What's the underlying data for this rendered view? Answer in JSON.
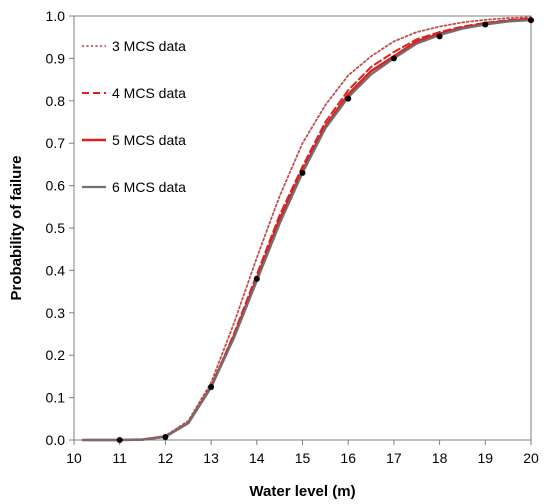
{
  "chart_data": {
    "type": "line",
    "title": "",
    "xlabel": "Water level (m)",
    "ylabel": "Probability of failure",
    "xlim": [
      10,
      20
    ],
    "ylim": [
      0,
      1
    ],
    "x_ticks": [
      "10",
      "11",
      "12",
      "13",
      "14",
      "15",
      "16",
      "17",
      "18",
      "19",
      "20"
    ],
    "y_ticks": [
      "0.0",
      "0.1",
      "0.2",
      "0.3",
      "0.4",
      "0.5",
      "0.6",
      "0.7",
      "0.8",
      "0.9",
      "1.0"
    ],
    "grid": false,
    "legend_position": "top-left",
    "x": [
      10.2,
      11,
      11.5,
      12,
      12.5,
      13,
      13.5,
      14,
      14.5,
      15,
      15.5,
      16,
      16.5,
      17,
      17.5,
      18,
      18.5,
      19,
      19.5,
      20
    ],
    "series": [
      {
        "name": "3 MCS data",
        "style": "dotted",
        "color": "#c0504d",
        "values": [
          0.0,
          0.0,
          0.001,
          0.01,
          0.045,
          0.135,
          0.275,
          0.43,
          0.575,
          0.7,
          0.79,
          0.86,
          0.905,
          0.94,
          0.962,
          0.975,
          0.985,
          0.991,
          0.995,
          0.997
        ]
      },
      {
        "name": "4 MCS data",
        "style": "dashed",
        "color": "#e02020",
        "values": [
          0.0,
          0.0,
          0.001,
          0.008,
          0.04,
          0.125,
          0.25,
          0.39,
          0.53,
          0.645,
          0.75,
          0.825,
          0.88,
          0.915,
          0.945,
          0.962,
          0.975,
          0.984,
          0.99,
          0.994
        ]
      },
      {
        "name": "5 MCS data",
        "style": "solid",
        "color": "#e02020",
        "values": [
          0.0,
          0.0,
          0.001,
          0.008,
          0.04,
          0.125,
          0.245,
          0.38,
          0.52,
          0.635,
          0.74,
          0.815,
          0.87,
          0.905,
          0.94,
          0.958,
          0.972,
          0.982,
          0.988,
          0.992
        ]
      },
      {
        "name": "6 MCS data",
        "style": "solid",
        "color": "#707070",
        "values": [
          0.0,
          0.0,
          0.001,
          0.008,
          0.04,
          0.124,
          0.24,
          0.375,
          0.51,
          0.63,
          0.735,
          0.808,
          0.862,
          0.9,
          0.935,
          0.955,
          0.97,
          0.98,
          0.987,
          0.99
        ]
      }
    ],
    "markers": {
      "x": [
        11,
        12,
        13,
        14,
        15,
        16,
        17,
        18,
        19,
        20
      ],
      "y": [
        0.0,
        0.007,
        0.125,
        0.38,
        0.63,
        0.805,
        0.9,
        0.952,
        0.98,
        0.99
      ],
      "color": "#000000"
    },
    "frame_color": "#7f7f7f"
  }
}
